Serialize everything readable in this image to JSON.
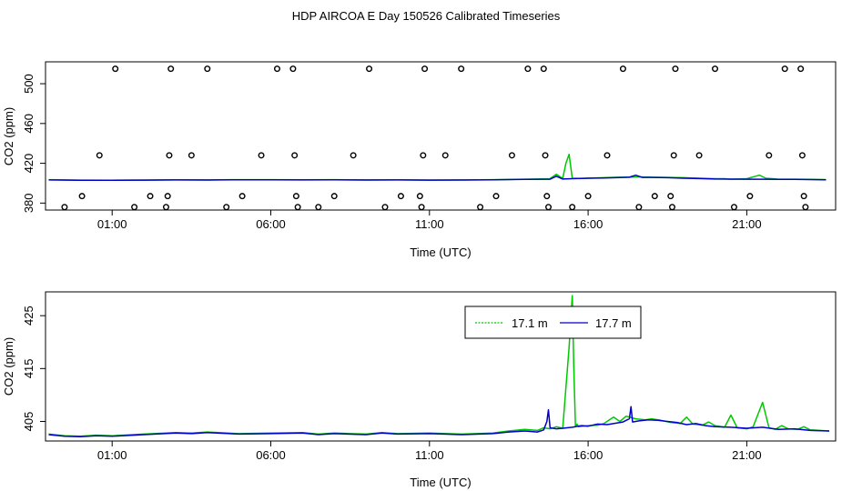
{
  "title": "HDP AIRCOA E  Day 150526  Calibrated Timeseries",
  "colors": {
    "green": "#00c800",
    "blue": "#0000cc",
    "axis": "#000000"
  },
  "chart_data": [
    {
      "type": "scatter",
      "name": "calibration-panel",
      "xlabel": "Time (UTC)",
      "ylabel": "CO2 (ppm)",
      "xlim": [
        -1.1,
        23.8
      ],
      "ylim": [
        373,
        522
      ],
      "x_ticks": [
        1,
        6,
        11,
        16,
        21
      ],
      "x_tick_labels": [
        "01:00",
        "06:00",
        "11:00",
        "16:00",
        "21:00"
      ],
      "y_ticks": [
        380,
        420,
        460,
        500
      ],
      "y_tick_labels": [
        "380",
        "420",
        "460",
        "500"
      ],
      "points": [
        [
          -0.5,
          376
        ],
        [
          0.05,
          387
        ],
        [
          0.6,
          428
        ],
        [
          1.1,
          515
        ],
        [
          1.7,
          376
        ],
        [
          2.2,
          387
        ],
        [
          2.7,
          376
        ],
        [
          2.75,
          387
        ],
        [
          2.8,
          428
        ],
        [
          2.85,
          515
        ],
        [
          3.5,
          428
        ],
        [
          4.0,
          515
        ],
        [
          4.6,
          376
        ],
        [
          5.1,
          387
        ],
        [
          5.7,
          428
        ],
        [
          6.2,
          515
        ],
        [
          6.7,
          515
        ],
        [
          6.75,
          428
        ],
        [
          6.8,
          387
        ],
        [
          6.85,
          376
        ],
        [
          7.5,
          376
        ],
        [
          8.0,
          387
        ],
        [
          8.6,
          428
        ],
        [
          9.1,
          515
        ],
        [
          9.6,
          376
        ],
        [
          10.1,
          387
        ],
        [
          10.7,
          387
        ],
        [
          10.75,
          376
        ],
        [
          10.8,
          428
        ],
        [
          10.85,
          515
        ],
        [
          11.5,
          428
        ],
        [
          12.0,
          515
        ],
        [
          12.6,
          376
        ],
        [
          13.1,
          387
        ],
        [
          13.6,
          428
        ],
        [
          14.1,
          515
        ],
        [
          14.6,
          515
        ],
        [
          14.65,
          428
        ],
        [
          14.7,
          387
        ],
        [
          14.75,
          376
        ],
        [
          15.5,
          376
        ],
        [
          16.0,
          387
        ],
        [
          16.6,
          428
        ],
        [
          17.1,
          515
        ],
        [
          17.6,
          376
        ],
        [
          18.1,
          387
        ],
        [
          18.6,
          387
        ],
        [
          18.65,
          376
        ],
        [
          18.7,
          428
        ],
        [
          18.75,
          515
        ],
        [
          19.5,
          428
        ],
        [
          20.0,
          515
        ],
        [
          20.6,
          376
        ],
        [
          21.1,
          387
        ],
        [
          21.7,
          428
        ],
        [
          22.2,
          515
        ],
        [
          22.7,
          515
        ],
        [
          22.75,
          428
        ],
        [
          22.8,
          387
        ],
        [
          22.85,
          376
        ]
      ],
      "series": [
        {
          "name": "17.1 m",
          "color": "#00c800",
          "x": [
            -1,
            0,
            1,
            2,
            3,
            4,
            5,
            6,
            7,
            8,
            9,
            10,
            11,
            12,
            13,
            14,
            14.8,
            15.0,
            15.2,
            15.3,
            15.4,
            15.5,
            15.7,
            16,
            16.5,
            17,
            17.3,
            17.6,
            18,
            18.5,
            19,
            19.5,
            20,
            20.3,
            20.5,
            21,
            21.4,
            21.6,
            21.8,
            22,
            22.5,
            23,
            23.5
          ],
          "y": [
            403.5,
            403.1,
            403.0,
            403.2,
            403.4,
            403.3,
            403.5,
            403.5,
            403.4,
            403.5,
            403.3,
            403.4,
            403.2,
            403.3,
            403.5,
            404,
            404.5,
            409,
            404.8,
            420,
            429,
            405,
            404.8,
            405,
            405.5,
            406,
            406,
            406.4,
            406,
            405.8,
            405.5,
            405,
            404.5,
            404.5,
            404,
            404.5,
            408,
            405,
            404.5,
            404,
            404,
            403.8,
            403.6
          ]
        },
        {
          "name": "17.7 m",
          "color": "#0000cc",
          "x": [
            -1,
            0,
            1,
            2,
            3,
            4,
            5,
            6,
            7,
            8,
            9,
            10,
            11,
            12,
            13,
            14,
            14.8,
            15.0,
            15.2,
            15.5,
            16,
            16.5,
            17,
            17.3,
            17.5,
            17.7,
            18,
            18.5,
            19,
            19.5,
            20,
            21,
            21.5,
            22,
            22.5,
            23,
            23.5
          ],
          "y": [
            403.3,
            402.9,
            402.9,
            403.1,
            403.3,
            403.2,
            403.4,
            403.4,
            403.3,
            403.4,
            403.2,
            403.3,
            403.1,
            403.2,
            403.4,
            403.8,
            404,
            407,
            404.2,
            404.5,
            405,
            405.2,
            405.6,
            406,
            408,
            405.8,
            405.8,
            405.5,
            405,
            404.6,
            404.2,
            404,
            404,
            403.9,
            403.8,
            403.6,
            403.4
          ]
        }
      ]
    },
    {
      "type": "line",
      "name": "timeseries-panel",
      "xlabel": "Time (UTC)",
      "ylabel": "CO2 (ppm)",
      "xlim": [
        -1.1,
        23.8
      ],
      "ylim": [
        401.3,
        429.5
      ],
      "x_ticks": [
        1,
        6,
        11,
        16,
        21
      ],
      "x_tick_labels": [
        "01:00",
        "06:00",
        "11:00",
        "16:00",
        "21:00"
      ],
      "y_ticks": [
        405,
        415,
        425
      ],
      "y_tick_labels": [
        "405",
        "415",
        "425"
      ],
      "legend": {
        "position": "top-center",
        "entries": [
          "17.1 m",
          "17.7 m"
        ]
      },
      "series": [
        {
          "name": "17.1 m",
          "color": "#00c800",
          "x": [
            -1,
            -0.5,
            0,
            0.5,
            1,
            2,
            3,
            3.5,
            4,
            5,
            6,
            7,
            7.5,
            8,
            9,
            9.5,
            10,
            11,
            12,
            13,
            13.5,
            14,
            14.4,
            14.6,
            14.8,
            15,
            15.2,
            15.4,
            15.5,
            15.55,
            15.6,
            15.65,
            15.7,
            16,
            16.3,
            16.5,
            16.8,
            17.0,
            17.2,
            17.5,
            17.8,
            18,
            18.3,
            18.6,
            18.9,
            19.1,
            19.3,
            19.6,
            19.8,
            20,
            20.3,
            20.5,
            20.7,
            21,
            21.2,
            21.5,
            21.7,
            21.9,
            22.1,
            22.3,
            22.6,
            22.8,
            23,
            23.3,
            23.6
          ],
          "y": [
            402.6,
            402.3,
            402.2,
            402.4,
            402.3,
            402.6,
            402.9,
            402.8,
            403.0,
            402.7,
            402.8,
            402.9,
            402.6,
            402.8,
            402.6,
            402.9,
            402.7,
            402.8,
            402.6,
            402.8,
            403.2,
            403.5,
            403.3,
            403.8,
            403.6,
            404.0,
            403.7,
            419,
            428.8,
            415,
            404,
            404.5,
            404,
            404.2,
            404.3,
            404.6,
            405.8,
            405.0,
            406.0,
            405.5,
            405.3,
            405.5,
            405.2,
            404.8,
            404.6,
            405.8,
            404.5,
            404.3,
            404.9,
            404.2,
            403.9,
            406.2,
            403.8,
            403.6,
            404,
            408.6,
            403.8,
            403.5,
            404.2,
            403.6,
            403.5,
            404.0,
            403.4,
            403.3,
            403.2
          ]
        },
        {
          "name": "17.7 m",
          "color": "#0000cc",
          "x": [
            -1,
            -0.5,
            0,
            0.5,
            1,
            2,
            3,
            3.5,
            4,
            5,
            6,
            7,
            7.5,
            8,
            9,
            9.5,
            10,
            11,
            12,
            13,
            13.5,
            14,
            14.4,
            14.6,
            14.7,
            14.75,
            14.8,
            15,
            15.2,
            15.5,
            15.8,
            16,
            16.3,
            16.6,
            16.9,
            17.1,
            17.3,
            17.35,
            17.4,
            17.6,
            17.9,
            18.2,
            18.5,
            18.8,
            19.1,
            19.4,
            19.7,
            20,
            20.5,
            21,
            21.5,
            22,
            22.5,
            23,
            23.6
          ],
          "y": [
            402.5,
            402.2,
            402.1,
            402.3,
            402.2,
            402.5,
            402.8,
            402.7,
            402.9,
            402.6,
            402.7,
            402.8,
            402.5,
            402.7,
            402.5,
            402.8,
            402.6,
            402.7,
            402.5,
            402.7,
            403.0,
            403.2,
            403.0,
            403.4,
            405,
            407.2,
            403.8,
            403.6,
            403.7,
            403.9,
            404.2,
            404.1,
            404.5,
            404.4,
            404.7,
            404.9,
            405.5,
            407.8,
            404.9,
            405.1,
            405.3,
            405.2,
            405.0,
            404.8,
            404.4,
            404.6,
            404.2,
            404.0,
            403.9,
            403.7,
            403.9,
            403.5,
            403.6,
            403.3,
            403.2
          ]
        }
      ]
    }
  ]
}
